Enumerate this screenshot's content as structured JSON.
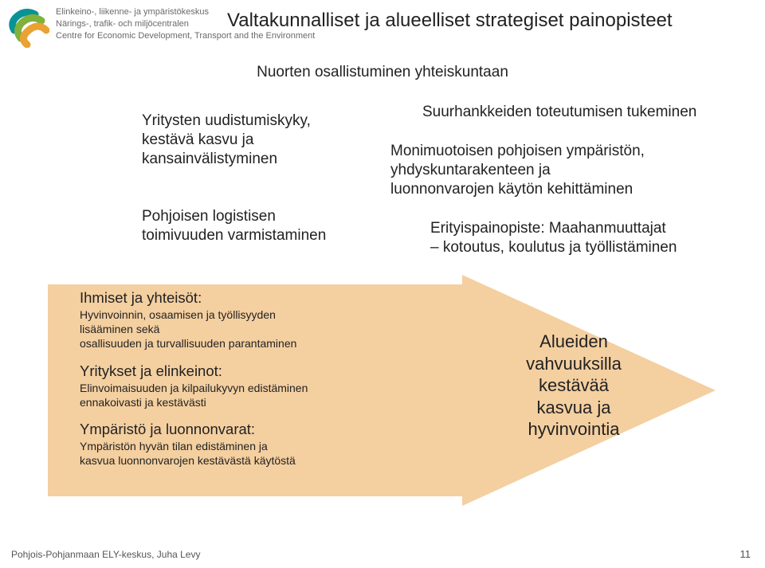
{
  "colors": {
    "text": "#222222",
    "muted": "#6a6a6a",
    "arrow_fill": "#f4cfa0",
    "logo_teal": "#0a9396",
    "logo_green": "#7fb13b",
    "logo_orange": "#e9a233",
    "background": "#ffffff"
  },
  "header": {
    "org_line1": "Elinkeino-, liikenne- ja ympäristökeskus",
    "org_line2": "Närings-, trafik- och miljöcentralen",
    "org_line3": "Centre for Economic Development, Transport and the Environment"
  },
  "title": "Valtakunnalliset ja alueelliset strategiset painopisteet",
  "subheading": "Nuorten osallistuminen yhteiskuntaan",
  "top_left": "Yritysten uudistumiskyky,\nkestävä kasvu ja\nkansainvälistyminen",
  "mid_left": "Pohjoisen logistisen\ntoimivuuden varmistaminen",
  "top_right": "Suurhankkeiden toteutumisen tukeminen",
  "mid_right": "Monimuotoisen pohjoisen ympäristön,\nyhdyskuntarakenteen ja\nluonnonvarojen käytön kehittäminen",
  "emphasis": "Erityispainopiste: Maahanmuuttajat\n– kotoutus, koulutus ja työllistäminen",
  "arrow": {
    "fill": "#f4cfa0",
    "sections": [
      {
        "head": "Ihmiset ja yhteisöt:",
        "sub": "Hyvinvoinnin, osaamisen ja työllisyyden\nlisääminen sekä\nosallisuuden ja turvallisuuden parantaminen"
      },
      {
        "head": "Yritykset ja elinkeinot:",
        "sub": "Elinvoimaisuuden ja kilpailukyvyn edistäminen\nennakoivasti ja kestävästi"
      },
      {
        "head": "Ympäristö ja luonnonvarat:",
        "sub": "Ympäristön hyvän tilan edistäminen ja\nkasvua luonnonvarojen kestävästä käytöstä"
      }
    ],
    "right_text": "Alueiden\nvahvuuksilla\nkestävää\nkasvua ja\nhyvinvointia"
  },
  "footer": "Pohjois-Pohjanmaan ELY-keskus, Juha Levy",
  "page_number": "11",
  "typography": {
    "title_fontsize": 24,
    "body_fontsize": 19,
    "section_head_fontsize": 18.5,
    "section_sub_fontsize": 14,
    "arrow_right_fontsize": 22,
    "org_fontsize": 11,
    "footer_fontsize": 12
  }
}
